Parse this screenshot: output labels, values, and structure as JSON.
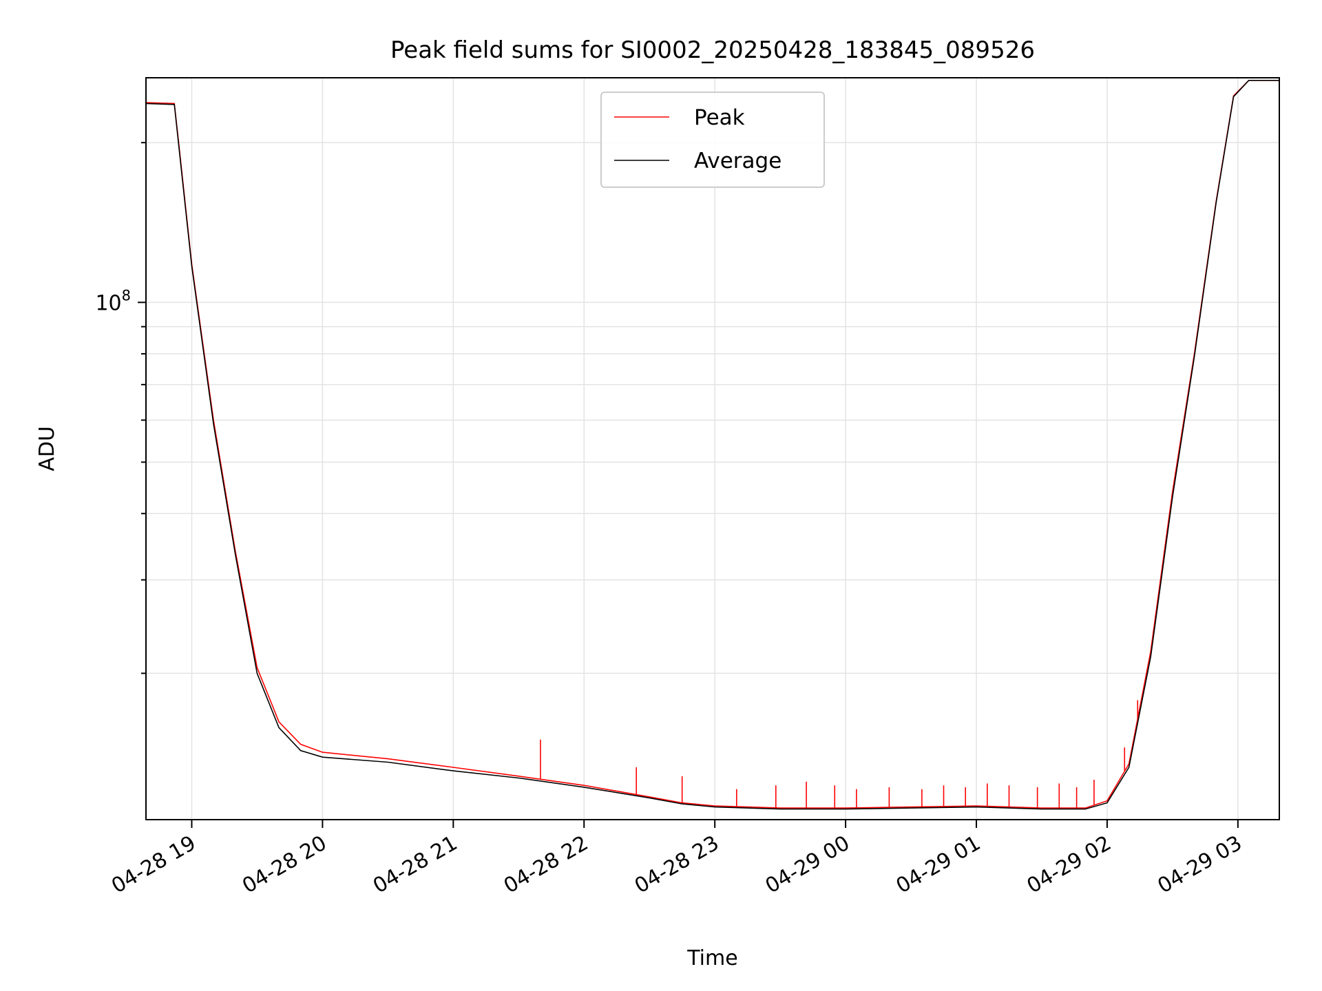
{
  "chart_data": {
    "type": "line",
    "title": "Peak field sums for SI0002_20250428_183845_089526",
    "xlabel": "Time",
    "ylabel": "ADU",
    "yscale": "log",
    "x_tick_labels": [
      "04-28 19",
      "04-28 20",
      "04-28 21",
      "04-28 22",
      "04-28 23",
      "04-29 00",
      "04-29 01",
      "04-29 02",
      "04-29 03"
    ],
    "y_tick_labels": [
      {
        "base": "10",
        "exp": "8"
      }
    ],
    "xlim": [
      "2025-04-28 18:39",
      "2025-04-29 03:19"
    ],
    "ylim": [
      10600000,
      265000000
    ],
    "grid": true,
    "legend_position": "upper center",
    "series": [
      {
        "name": "Peak",
        "color": "#ff0000",
        "x": [
          "2025-04-28 18:39",
          "2025-04-28 18:52",
          "2025-04-28 18:54",
          "2025-04-28 19:00",
          "2025-04-28 19:10",
          "2025-04-28 19:20",
          "2025-04-28 19:30",
          "2025-04-28 19:40",
          "2025-04-28 19:50",
          "2025-04-28 20:00",
          "2025-04-28 20:30",
          "2025-04-28 21:00",
          "2025-04-28 21:30",
          "2025-04-28 22:00",
          "2025-04-28 22:30",
          "2025-04-28 22:45",
          "2025-04-28 23:00",
          "2025-04-28 23:30",
          "2025-04-29 00:00",
          "2025-04-29 00:30",
          "2025-04-29 01:00",
          "2025-04-29 01:30",
          "2025-04-29 01:50",
          "2025-04-29 02:00",
          "2025-04-29 02:10",
          "2025-04-29 02:20",
          "2025-04-29 02:30",
          "2025-04-29 02:40",
          "2025-04-29 02:50",
          "2025-04-29 02:58",
          "2025-04-29 03:05",
          "2025-04-29 03:19"
        ],
        "y": [
          238000000,
          237000000,
          200000000,
          118000000,
          60000000,
          34000000,
          20500000,
          16200000,
          14700000,
          14200000,
          13800000,
          13300000,
          12800000,
          12300000,
          11700000,
          11400000,
          11250000,
          11150000,
          11150000,
          11200000,
          11250000,
          11150000,
          11150000,
          11500000,
          13500000,
          22000000,
          44000000,
          80000000,
          155000000,
          245000000,
          262000000,
          262000000
        ],
        "spikes": [
          {
            "t": "2025-04-28 21:40",
            "y": 15000000
          },
          {
            "t": "2025-04-28 22:24",
            "y": 13300000
          },
          {
            "t": "2025-04-28 22:45",
            "y": 12800000
          },
          {
            "t": "2025-04-28 23:10",
            "y": 12100000
          },
          {
            "t": "2025-04-28 23:28",
            "y": 12300000
          },
          {
            "t": "2025-04-28 23:42",
            "y": 12500000
          },
          {
            "t": "2025-04-28 23:55",
            "y": 12300000
          },
          {
            "t": "2025-04-29 00:05",
            "y": 12100000
          },
          {
            "t": "2025-04-29 00:20",
            "y": 12200000
          },
          {
            "t": "2025-04-29 00:35",
            "y": 12100000
          },
          {
            "t": "2025-04-29 00:45",
            "y": 12300000
          },
          {
            "t": "2025-04-29 00:55",
            "y": 12200000
          },
          {
            "t": "2025-04-29 01:05",
            "y": 12400000
          },
          {
            "t": "2025-04-29 01:15",
            "y": 12300000
          },
          {
            "t": "2025-04-29 01:28",
            "y": 12200000
          },
          {
            "t": "2025-04-29 01:38",
            "y": 12400000
          },
          {
            "t": "2025-04-29 01:46",
            "y": 12200000
          },
          {
            "t": "2025-04-29 01:54",
            "y": 12600000
          },
          {
            "t": "2025-04-29 02:08",
            "y": 14500000
          },
          {
            "t": "2025-04-29 02:14",
            "y": 17800000
          }
        ]
      },
      {
        "name": "Average",
        "color": "#000000",
        "x": [
          "2025-04-28 18:39",
          "2025-04-28 18:52",
          "2025-04-28 18:54",
          "2025-04-28 19:00",
          "2025-04-28 19:10",
          "2025-04-28 19:20",
          "2025-04-28 19:30",
          "2025-04-28 19:40",
          "2025-04-28 19:50",
          "2025-04-28 20:00",
          "2025-04-28 20:30",
          "2025-04-28 21:00",
          "2025-04-28 21:30",
          "2025-04-28 22:00",
          "2025-04-28 22:30",
          "2025-04-28 22:45",
          "2025-04-28 23:00",
          "2025-04-28 23:30",
          "2025-04-29 00:00",
          "2025-04-29 00:30",
          "2025-04-29 01:00",
          "2025-04-29 01:30",
          "2025-04-29 01:50",
          "2025-04-29 02:00",
          "2025-04-29 02:10",
          "2025-04-29 02:20",
          "2025-04-29 02:30",
          "2025-04-29 02:40",
          "2025-04-29 02:50",
          "2025-04-29 02:58",
          "2025-04-29 03:05",
          "2025-04-29 03:19"
        ],
        "y": [
          237000000,
          236000000,
          198000000,
          117000000,
          59000000,
          33500000,
          20000000,
          15800000,
          14300000,
          13900000,
          13600000,
          13100000,
          12700000,
          12200000,
          11650000,
          11350000,
          11200000,
          11100000,
          11100000,
          11150000,
          11200000,
          11100000,
          11100000,
          11400000,
          13300000,
          21500000,
          43000000,
          79000000,
          154000000,
          244000000,
          262000000,
          262000000
        ]
      }
    ]
  }
}
